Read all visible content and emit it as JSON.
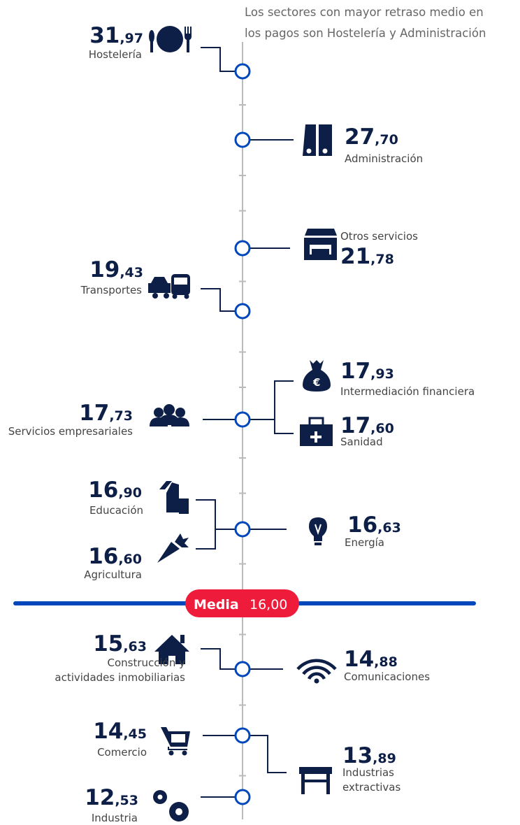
{
  "header": {
    "text": [
      "Los sectores con mayor retraso medio en",
      "los  pagos son Hostelería y Administración"
    ]
  },
  "items": [
    {
      "value": "31,97",
      "label": [
        "Hostelería"
      ]
    },
    {
      "value": "27,70",
      "label": [
        "Administración"
      ]
    },
    {
      "value": "21,78",
      "label": [
        "Otros servicios"
      ]
    },
    {
      "value": "19,43",
      "label": [
        "Transportes"
      ]
    },
    {
      "value": "17,93",
      "label": [
        "Intermediación financiera"
      ]
    },
    {
      "value": "17,73",
      "label": [
        "Servicios empresariales"
      ]
    },
    {
      "value": "17,60",
      "label": [
        "Sanidad"
      ]
    },
    {
      "value": "16,90",
      "label": [
        "Educación"
      ]
    },
    {
      "value": "16,63",
      "label": [
        "Energía"
      ]
    },
    {
      "value": "16,60",
      "label": [
        "Agricultura"
      ]
    },
    {
      "value": "15,63",
      "label": [
        "Construcción y",
        "actividades inmobiliarias"
      ]
    },
    {
      "value": "14,88",
      "label": [
        "Comunicaciones"
      ]
    },
    {
      "value": "14,45",
      "label": [
        "Comercio"
      ]
    },
    {
      "value": "13,89",
      "label": [
        "Industrias",
        "extractivas"
      ]
    },
    {
      "value": "12,53",
      "label": [
        "Industria"
      ]
    }
  ],
  "media": {
    "label": "Media",
    "value": "16,00"
  }
}
